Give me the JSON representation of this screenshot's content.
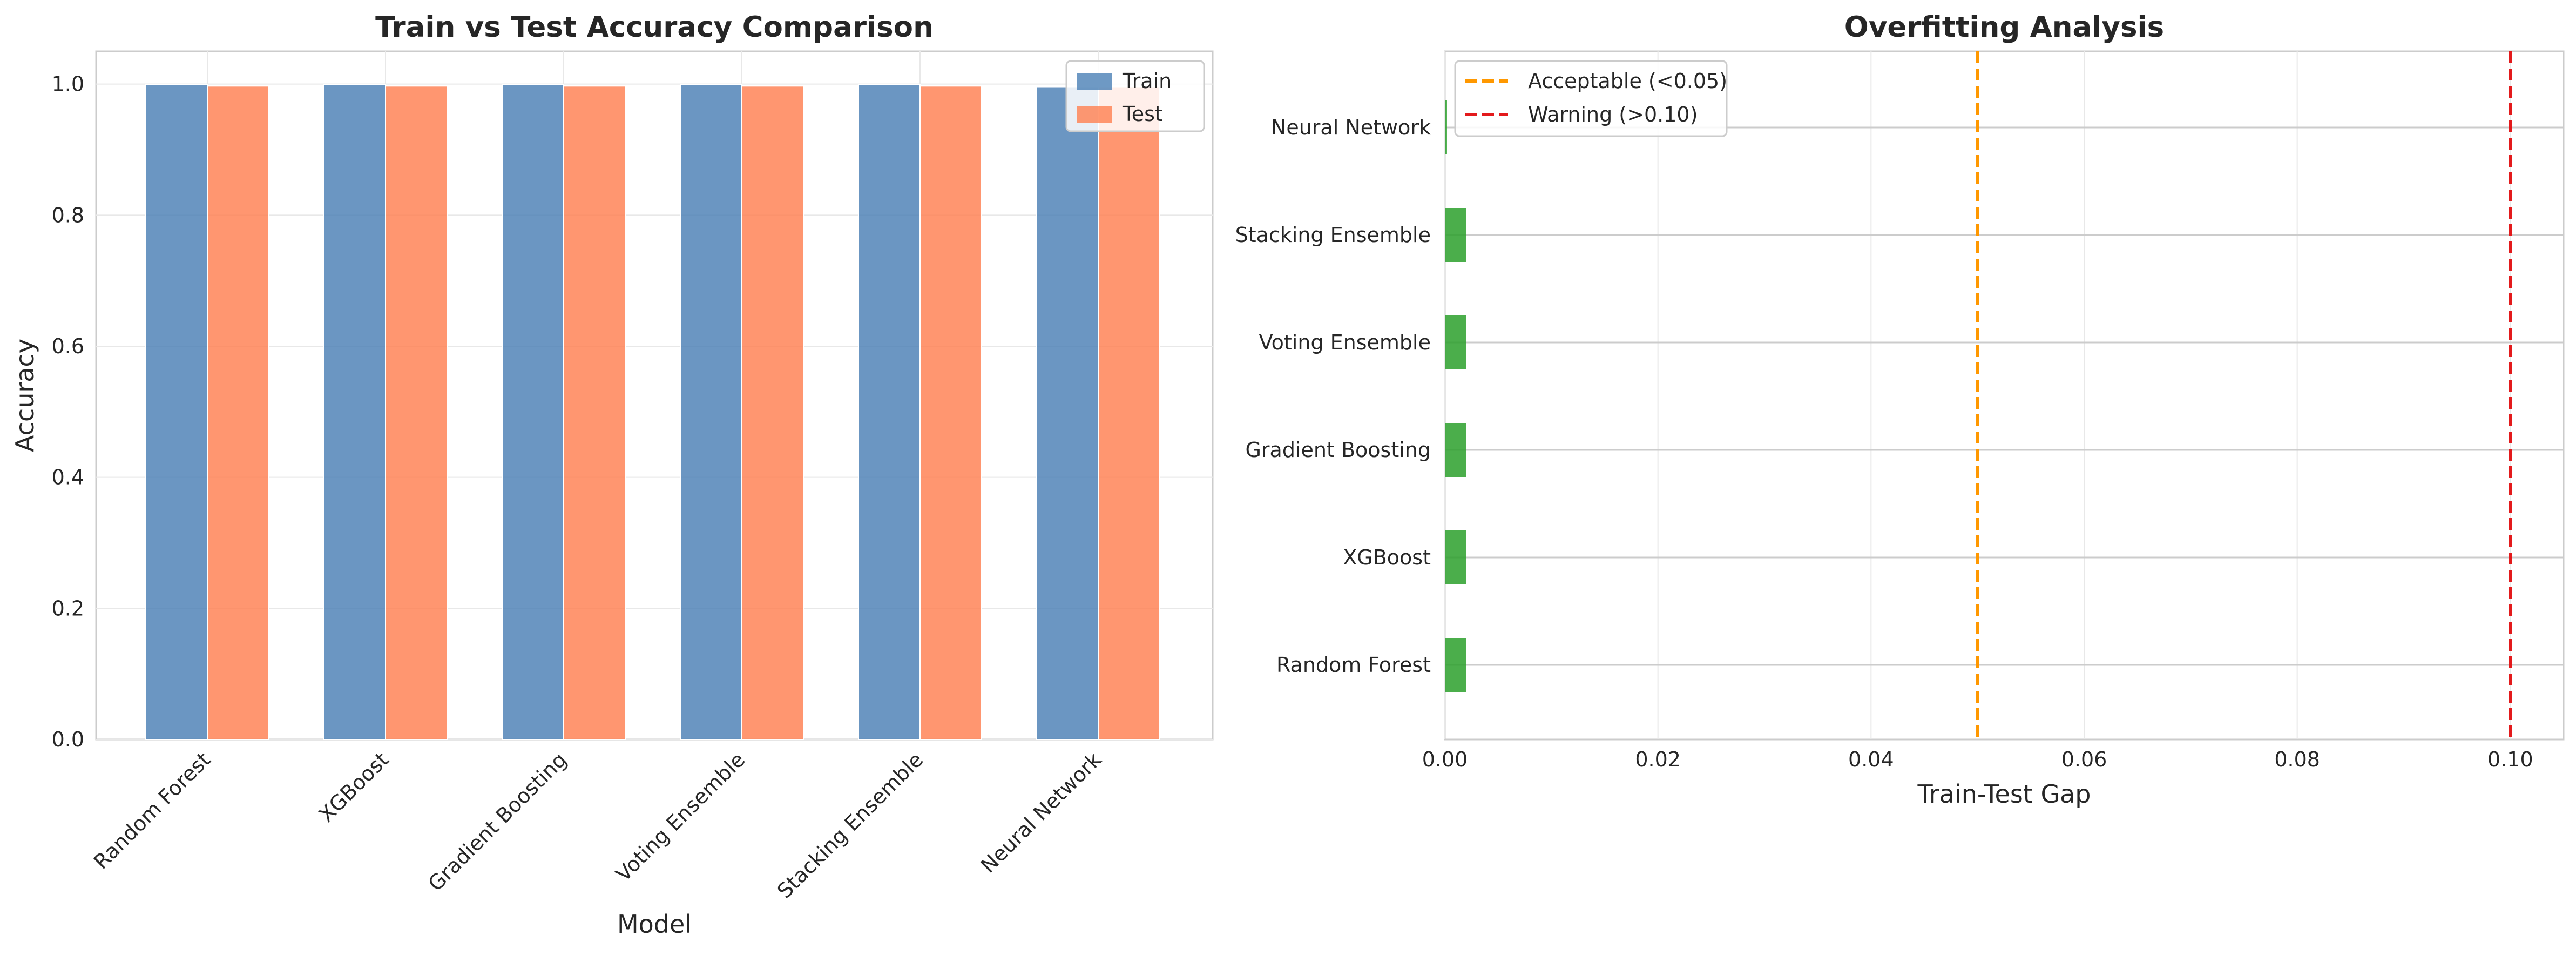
{
  "chart_data": [
    {
      "type": "bar",
      "title": "Train vs Test Accuracy Comparison",
      "xlabel": "Model",
      "ylabel": "Accuracy",
      "ylim": [
        0,
        1.05
      ],
      "yticks": [
        0.0,
        0.2,
        0.4,
        0.6,
        0.8,
        1.0
      ],
      "ytick_labels": [
        "0.0",
        "0.2",
        "0.4",
        "0.6",
        "0.8",
        "1.0"
      ],
      "categories": [
        "Random Forest",
        "XGBoost",
        "Gradient Boosting",
        "Voting Ensemble",
        "Stacking Ensemble",
        "Neural Network"
      ],
      "series": [
        {
          "name": "Train",
          "color": "#4a7fb5",
          "values": [
            0.999,
            0.999,
            0.999,
            0.999,
            0.999,
            0.996
          ]
        },
        {
          "name": "Test",
          "color": "#ff7f50",
          "values": [
            0.997,
            0.997,
            0.997,
            0.997,
            0.997,
            0.996
          ]
        }
      ],
      "grid": true,
      "legend_position": "top-right"
    },
    {
      "type": "bar",
      "orientation": "horizontal",
      "title": "Overfitting Analysis",
      "xlabel": "Train-Test Gap",
      "ylabel": "",
      "xlim": [
        0,
        0.105
      ],
      "xticks": [
        0.0,
        0.02,
        0.04,
        0.06,
        0.08,
        0.1
      ],
      "xtick_labels": [
        "0.00",
        "0.02",
        "0.04",
        "0.06",
        "0.08",
        "0.10"
      ],
      "categories": [
        "Random Forest",
        "XGBoost",
        "Gradient Boosting",
        "Voting Ensemble",
        "Stacking Ensemble",
        "Neural Network"
      ],
      "values": [
        0.002,
        0.002,
        0.002,
        0.002,
        0.002,
        0.0002
      ],
      "bar_color": "#2ca02c",
      "reference_lines": [
        {
          "label": "Acceptable (<0.05)",
          "value": 0.05,
          "color": "#ff9800"
        },
        {
          "label": "Warning (>0.10)",
          "value": 0.1,
          "color": "#e31a1c"
        }
      ],
      "grid": true,
      "legend_position": "top-left"
    }
  ]
}
